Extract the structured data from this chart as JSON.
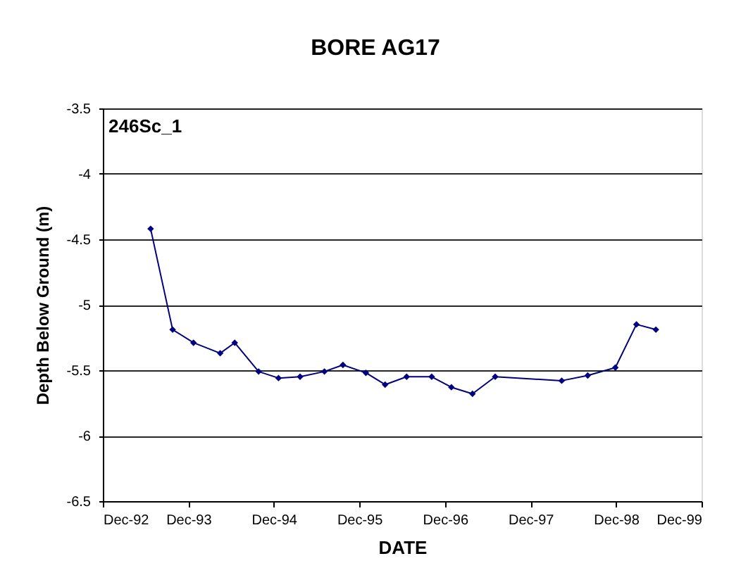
{
  "chart_data": {
    "type": "line",
    "title": "BORE AG17",
    "xlabel": "DATE",
    "ylabel": "Depth Below Ground (m)",
    "annotations": [
      "246Sc_1"
    ],
    "x": [
      "1993-06-23",
      "1993-09-25",
      "1993-12-23",
      "1994-04-16",
      "1994-06-17",
      "1994-09-27",
      "1994-12-21",
      "1995-03-23",
      "1995-07-05",
      "1995-09-22",
      "1995-12-29",
      "1996-03-20",
      "1996-06-20",
      "1996-10-05",
      "1996-12-28",
      "1997-03-28",
      "1997-07-03",
      "1998-04-13",
      "1998-08-02",
      "1998-11-28",
      "1999-02-26",
      "1999-05-20"
    ],
    "series": [
      {
        "color": "#000080",
        "values": [
          -4.42,
          -5.19,
          -5.29,
          -5.37,
          -5.29,
          -5.51,
          -5.56,
          -5.55,
          -5.51,
          -5.46,
          -5.52,
          -5.61,
          -5.55,
          -5.55,
          -5.63,
          -5.68,
          -5.55,
          -5.58,
          -5.54,
          -5.48,
          -5.15,
          -5.19
        ]
      }
    ],
    "xlim": [
      "1992-12-01",
      "1999-12-01"
    ],
    "xticks": [
      {
        "value": "1992-12-01",
        "label": "Dec-92"
      },
      {
        "value": "1993-12-01",
        "label": "Dec-93"
      },
      {
        "value": "1994-12-01",
        "label": "Dec-94"
      },
      {
        "value": "1995-12-01",
        "label": "Dec-95"
      },
      {
        "value": "1996-12-01",
        "label": "Dec-96"
      },
      {
        "value": "1997-12-01",
        "label": "Dec-97"
      },
      {
        "value": "1998-12-01",
        "label": "Dec-98"
      },
      {
        "value": "1999-12-01",
        "label": "Dec-99"
      }
    ],
    "ylim": [
      -6.5,
      -3.5
    ],
    "yticks": [
      -6.5,
      -6,
      -5.5,
      -5,
      -4.5,
      -4,
      -3.5
    ],
    "grid": "y",
    "marker": "diamond",
    "line_style": "solid"
  }
}
